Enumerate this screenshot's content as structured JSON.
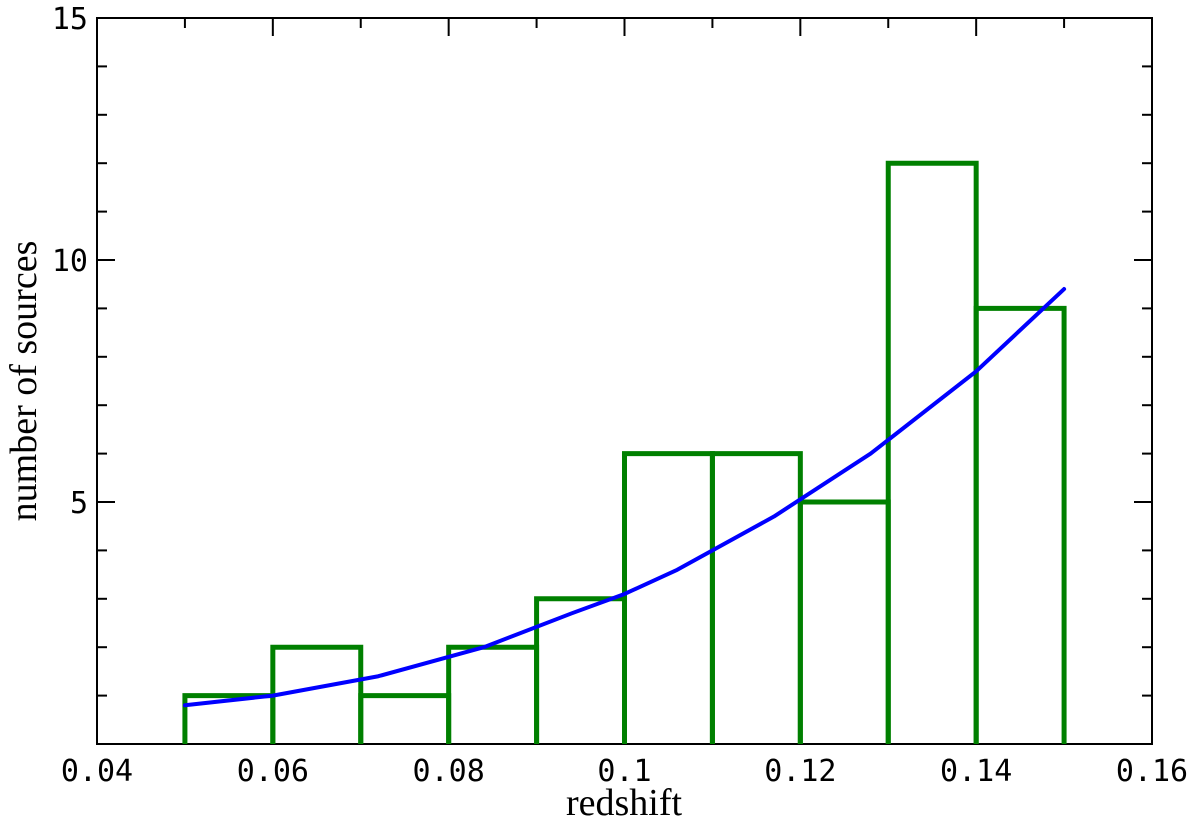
{
  "chart_data": {
    "type": "bar",
    "title": "",
    "xlabel": "redshift",
    "ylabel": "number of sources",
    "xlim": [
      0.04,
      0.16
    ],
    "ylim": [
      0,
      15
    ],
    "x_ticks": [
      0.04,
      0.06,
      0.08,
      0.1,
      0.12,
      0.14,
      0.16
    ],
    "x_tick_labels": [
      "0.04",
      "0.06",
      "0.08",
      "0.1",
      "0.12",
      "0.14",
      "0.16"
    ],
    "y_ticks": [
      5,
      10,
      15
    ],
    "y_tick_labels": [
      "5",
      "10",
      "15"
    ],
    "grid": false,
    "legend": "none",
    "histogram": {
      "style": "step",
      "color": "#008000",
      "bin_edges": [
        0.05,
        0.06,
        0.07,
        0.08,
        0.09,
        0.1,
        0.11,
        0.12,
        0.13,
        0.14,
        0.15
      ],
      "counts": [
        1,
        2,
        1,
        2,
        3,
        6,
        6,
        5,
        12,
        9
      ]
    },
    "curve": {
      "color": "#0000ff",
      "x": [
        0.05,
        0.06,
        0.072,
        0.084,
        0.094,
        0.1,
        0.106,
        0.117,
        0.128,
        0.14,
        0.15
      ],
      "y": [
        0.8,
        1.0,
        1.4,
        2.0,
        2.7,
        3.1,
        3.6,
        4.7,
        6.0,
        7.7,
        9.4
      ]
    }
  }
}
